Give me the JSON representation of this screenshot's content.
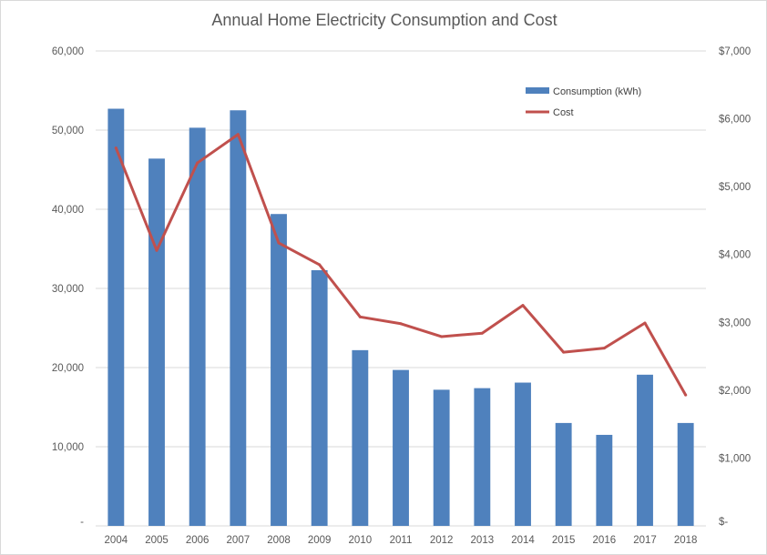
{
  "chart_data": {
    "type": "bar",
    "title": "Annual Home Electricity Consumption and Cost",
    "categories": [
      "2004",
      "2005",
      "2006",
      "2007",
      "2008",
      "2009",
      "2010",
      "2011",
      "2012",
      "2013",
      "2014",
      "2015",
      "2016",
      "2017",
      "2018"
    ],
    "series": [
      {
        "name": "Consumption (kWh)",
        "type": "bar",
        "axis": "left",
        "color": "#4f81bd",
        "values": [
          52700,
          46400,
          50300,
          52500,
          39400,
          32300,
          22200,
          19700,
          17200,
          17400,
          18100,
          13000,
          11500,
          19100,
          13000
        ]
      },
      {
        "name": "Cost",
        "type": "line",
        "axis": "right",
        "color": "#c0504d",
        "values": [
          5570,
          4060,
          5350,
          5770,
          4170,
          3850,
          3080,
          2980,
          2790,
          2840,
          3250,
          2560,
          2620,
          2990,
          1930
        ]
      }
    ],
    "left_axis": {
      "min": 0,
      "max": 60000,
      "ticks": [
        {
          "value": 0,
          "label": "-"
        },
        {
          "value": 10000,
          "label": "10,000"
        },
        {
          "value": 20000,
          "label": "20,000"
        },
        {
          "value": 30000,
          "label": "30,000"
        },
        {
          "value": 40000,
          "label": "40,000"
        },
        {
          "value": 50000,
          "label": "50,000"
        },
        {
          "value": 60000,
          "label": "60,000"
        }
      ]
    },
    "right_axis": {
      "min": 0,
      "max": 7000,
      "ticks": [
        {
          "value": 0,
          "label": "$-"
        },
        {
          "value": 1000,
          "label": "$1,000"
        },
        {
          "value": 2000,
          "label": "$2,000"
        },
        {
          "value": 3000,
          "label": "$3,000"
        },
        {
          "value": 4000,
          "label": "$4,000"
        },
        {
          "value": 5000,
          "label": "$5,000"
        },
        {
          "value": 6000,
          "label": "$6,000"
        },
        {
          "value": 7000,
          "label": "$7,000"
        }
      ]
    },
    "grid": true,
    "gridline_color": "#d9d9d9",
    "legend_position": "top-right"
  }
}
